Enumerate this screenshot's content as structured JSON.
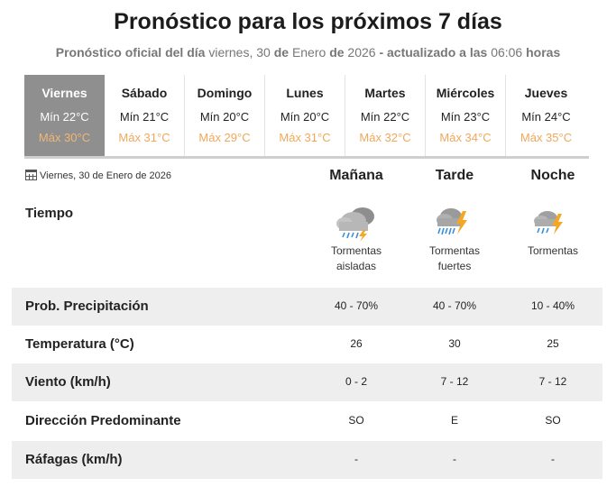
{
  "title": "Pronóstico para los próximos 7 días",
  "subtitle": {
    "prefix": "Pronóstico oficial del día",
    "day": "viernes, 30",
    "de1": "de",
    "month": "Enero",
    "de2": "de",
    "year": "2026",
    "updated": "- actualizado a las",
    "time": "06:06",
    "suffix": "horas"
  },
  "days": [
    {
      "name": "Viernes",
      "min": "Mín 22°C",
      "max": "Máx 30°C",
      "selected": true
    },
    {
      "name": "Sábado",
      "min": "Mín 21°C",
      "max": "Máx 31°C"
    },
    {
      "name": "Domingo",
      "min": "Mín 20°C",
      "max": "Máx 29°C"
    },
    {
      "name": "Lunes",
      "min": "Mín 20°C",
      "max": "Máx 31°C"
    },
    {
      "name": "Martes",
      "min": "Mín 22°C",
      "max": "Máx 32°C"
    },
    {
      "name": "Miércoles",
      "min": "Mín 23°C",
      "max": "Máx 34°C"
    },
    {
      "name": "Jueves",
      "min": "Mín 24°C",
      "max": "Máx 35°C"
    }
  ],
  "detail": {
    "date": "Viernes, 30 de Enero de 2026",
    "periods": [
      "Mañana",
      "Tarde",
      "Noche"
    ],
    "tiempo_label": "Tiempo",
    "weather": [
      {
        "icon": "thunderstorm-cloud-icon",
        "line1": "Tormentas",
        "line2": "aisladas"
      },
      {
        "icon": "strong-thunderstorm-icon",
        "line1": "Tormentas",
        "line2": "fuertes"
      },
      {
        "icon": "thunderstorm-icon",
        "line1": "Tormentas",
        "line2": ""
      }
    ],
    "rows": [
      {
        "label": "Prob. Precipitación",
        "values": [
          "40 - 70%",
          "40 - 70%",
          "10 - 40%"
        ]
      },
      {
        "label": "Temperatura (°C)",
        "values": [
          "26",
          "30",
          "25"
        ]
      },
      {
        "label": "Viento (km/h)",
        "values": [
          "0 - 2",
          "7 - 12",
          "7 - 12"
        ]
      },
      {
        "label": "Dirección Predominante",
        "values": [
          "SO",
          "E",
          "SO"
        ]
      },
      {
        "label": "Ráfagas (km/h)",
        "values": [
          "-",
          "-",
          "-"
        ]
      }
    ]
  },
  "colors": {
    "selected_day_bg": "#8f8f8f",
    "max_temp": "#f0a85a",
    "row_shade": "#eeeeee",
    "lightning": "#f5a623",
    "rain": "#3a8fd9"
  }
}
